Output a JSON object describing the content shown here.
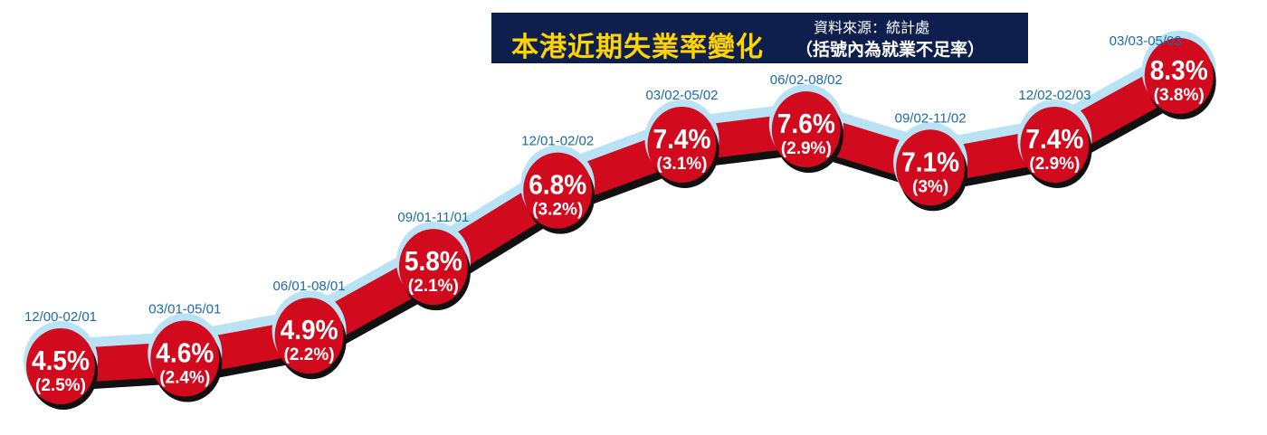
{
  "title": {
    "main": "本港近期失業率變化",
    "source": "資料來源：統計處",
    "note": "（括號內為就業不足率）"
  },
  "colors": {
    "ribbon": "#d10a1e",
    "glow": "#b9e3f4",
    "shadow": "#111111",
    "title_bg": "#0e1f4d",
    "title_text": "#ffd400",
    "period_text": "#1b6aa8"
  },
  "chart_data": {
    "type": "line",
    "title": "本港近期失業率變化",
    "subtitle": "（括號內為就業不足率）",
    "source": "資料來源：統計處",
    "categories": [
      "12/00-02/01",
      "03/01-05/01",
      "06/01-08/01",
      "09/01-11/01",
      "12/01-02/02",
      "03/02-05/02",
      "06/02-08/02",
      "09/02-11/02",
      "12/02-02/03",
      "03/03-05/03"
    ],
    "series": [
      {
        "values": [
          4.5,
          4.6,
          4.9,
          5.8,
          6.8,
          7.4,
          7.6,
          7.1,
          7.4,
          8.3
        ]
      },
      {
        "values": [
          2.5,
          2.4,
          2.2,
          2.1,
          3.2,
          3.1,
          2.9,
          3.0,
          2.9,
          3.8
        ]
      }
    ],
    "labels": [
      "4.5%",
      "4.6%",
      "4.9%",
      "5.8%",
      "6.8%",
      "7.4%",
      "7.6%",
      "7.1%",
      "7.4%",
      "8.3%"
    ],
    "sublabels": [
      "(2.5%)",
      "(2.4%)",
      "(2.2%)",
      "(2.1%)",
      "(3.2%)",
      "(3.1%)",
      "(2.9%)",
      "(3%)",
      "(2.9%)",
      "(3.8%)"
    ]
  }
}
